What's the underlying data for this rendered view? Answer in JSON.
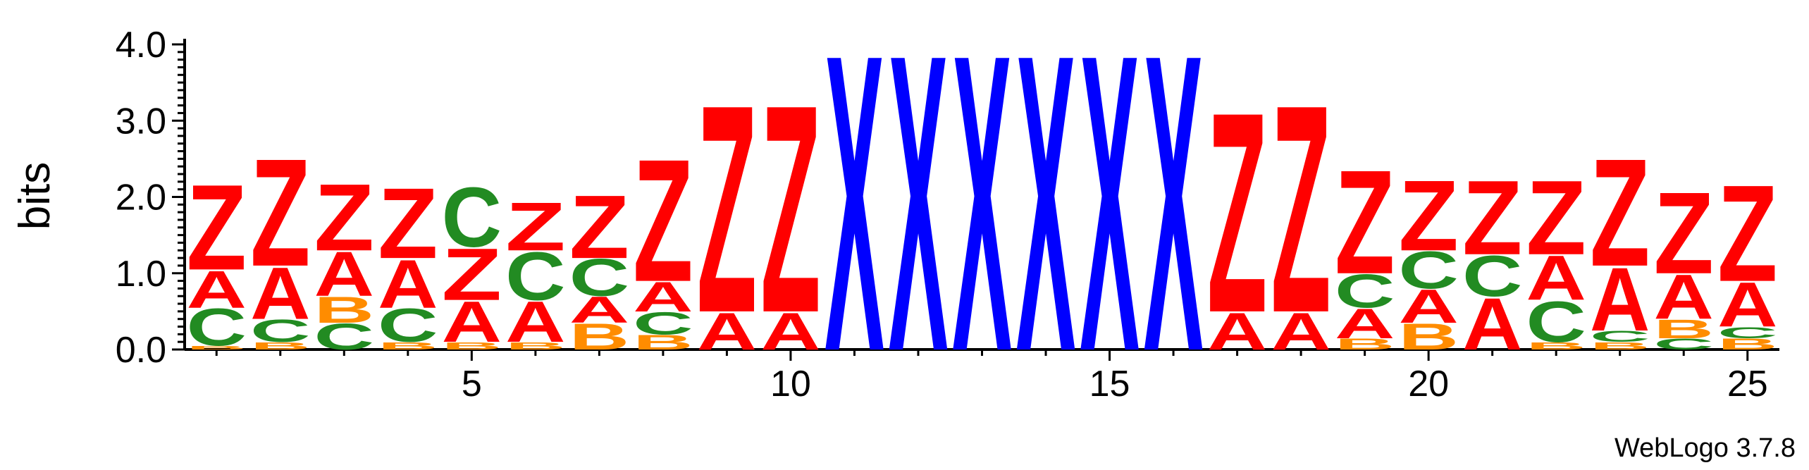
{
  "chart_data": {
    "type": "sequence_logo",
    "title": "",
    "xlabel": "",
    "ylabel": "bits",
    "ylim": [
      0,
      4.0
    ],
    "yticks": [
      "0.0",
      "1.0",
      "2.0",
      "3.0",
      "4.0"
    ],
    "xticks": [
      "5",
      "10",
      "15",
      "20",
      "25"
    ],
    "xlim": [
      0.5,
      25.5
    ],
    "colors": {
      "A": "#ff0000",
      "Z": "#ff0000",
      "C": "#228b22",
      "B": "#ff8c00",
      "X": "#0000ff"
    },
    "positions": [
      {
        "pos": 1,
        "stack": [
          [
            "B",
            0.05
          ],
          [
            "C",
            0.5
          ],
          [
            "A",
            0.5
          ],
          [
            "Z",
            1.15
          ]
        ]
      },
      {
        "pos": 2,
        "stack": [
          [
            "B",
            0.1
          ],
          [
            "C",
            0.3
          ],
          [
            "A",
            0.7
          ],
          [
            "Z",
            1.45
          ]
        ]
      },
      {
        "pos": 3,
        "stack": [
          [
            "C",
            0.35
          ],
          [
            "B",
            0.35
          ],
          [
            "A",
            0.6
          ],
          [
            "Z",
            0.9
          ]
        ]
      },
      {
        "pos": 4,
        "stack": [
          [
            "B",
            0.1
          ],
          [
            "C",
            0.45
          ],
          [
            "A",
            0.65
          ],
          [
            "Z",
            0.95
          ]
        ]
      },
      {
        "pos": 5,
        "stack": [
          [
            "B",
            0.1
          ],
          [
            "A",
            0.55
          ],
          [
            "Z",
            0.7
          ],
          [
            "C",
            0.8
          ]
        ]
      },
      {
        "pos": 6,
        "stack": [
          [
            "B",
            0.1
          ],
          [
            "A",
            0.55
          ],
          [
            "C",
            0.65
          ],
          [
            "Z",
            0.65
          ]
        ]
      },
      {
        "pos": 7,
        "stack": [
          [
            "B",
            0.35
          ],
          [
            "A",
            0.35
          ],
          [
            "C",
            0.5
          ],
          [
            "Z",
            0.85
          ]
        ]
      },
      {
        "pos": 8,
        "stack": [
          [
            "B",
            0.2
          ],
          [
            "C",
            0.3
          ],
          [
            "A",
            0.4
          ],
          [
            "Z",
            1.65
          ]
        ]
      },
      {
        "pos": 9,
        "stack": [
          [
            "A",
            0.5
          ],
          [
            "Z",
            2.8
          ]
        ]
      },
      {
        "pos": 10,
        "stack": [
          [
            "A",
            0.5
          ],
          [
            "Z",
            2.8
          ]
        ]
      },
      {
        "pos": 11,
        "stack": [
          [
            "X",
            4.0
          ]
        ]
      },
      {
        "pos": 12,
        "stack": [
          [
            "X",
            4.0
          ]
        ]
      },
      {
        "pos": 13,
        "stack": [
          [
            "X",
            4.0
          ]
        ]
      },
      {
        "pos": 14,
        "stack": [
          [
            "X",
            4.0
          ]
        ]
      },
      {
        "pos": 15,
        "stack": [
          [
            "X",
            4.0
          ]
        ]
      },
      {
        "pos": 16,
        "stack": [
          [
            "X",
            4.0
          ]
        ]
      },
      {
        "pos": 17,
        "stack": [
          [
            "A",
            0.5
          ],
          [
            "Z",
            2.7
          ]
        ]
      },
      {
        "pos": 18,
        "stack": [
          [
            "A",
            0.5
          ],
          [
            "Z",
            2.8
          ]
        ]
      },
      {
        "pos": 19,
        "stack": [
          [
            "B",
            0.15
          ],
          [
            "A",
            0.4
          ],
          [
            "C",
            0.45
          ],
          [
            "Z",
            1.4
          ]
        ]
      },
      {
        "pos": 20,
        "stack": [
          [
            "B",
            0.35
          ],
          [
            "A",
            0.45
          ],
          [
            "C",
            0.5
          ],
          [
            "Z",
            0.95
          ]
        ]
      },
      {
        "pos": 21,
        "stack": [
          [
            "A",
            0.7
          ],
          [
            "C",
            0.55
          ],
          [
            "Z",
            1.0
          ]
        ]
      },
      {
        "pos": 22,
        "stack": [
          [
            "B",
            0.1
          ],
          [
            "C",
            0.55
          ],
          [
            "A",
            0.6
          ],
          [
            "Z",
            1.0
          ]
        ]
      },
      {
        "pos": 23,
        "stack": [
          [
            "B",
            0.1
          ],
          [
            "C",
            0.15
          ],
          [
            "A",
            0.85
          ],
          [
            "Z",
            1.45
          ]
        ]
      },
      {
        "pos": 24,
        "stack": [
          [
            "C",
            0.15
          ],
          [
            "B",
            0.25
          ],
          [
            "A",
            0.6
          ],
          [
            "Z",
            1.1
          ]
        ]
      },
      {
        "pos": 25,
        "stack": [
          [
            "B",
            0.15
          ],
          [
            "C",
            0.15
          ],
          [
            "A",
            0.6
          ],
          [
            "Z",
            1.3
          ]
        ]
      }
    ]
  },
  "footer": {
    "credit": "WebLogo 3.7.8"
  }
}
